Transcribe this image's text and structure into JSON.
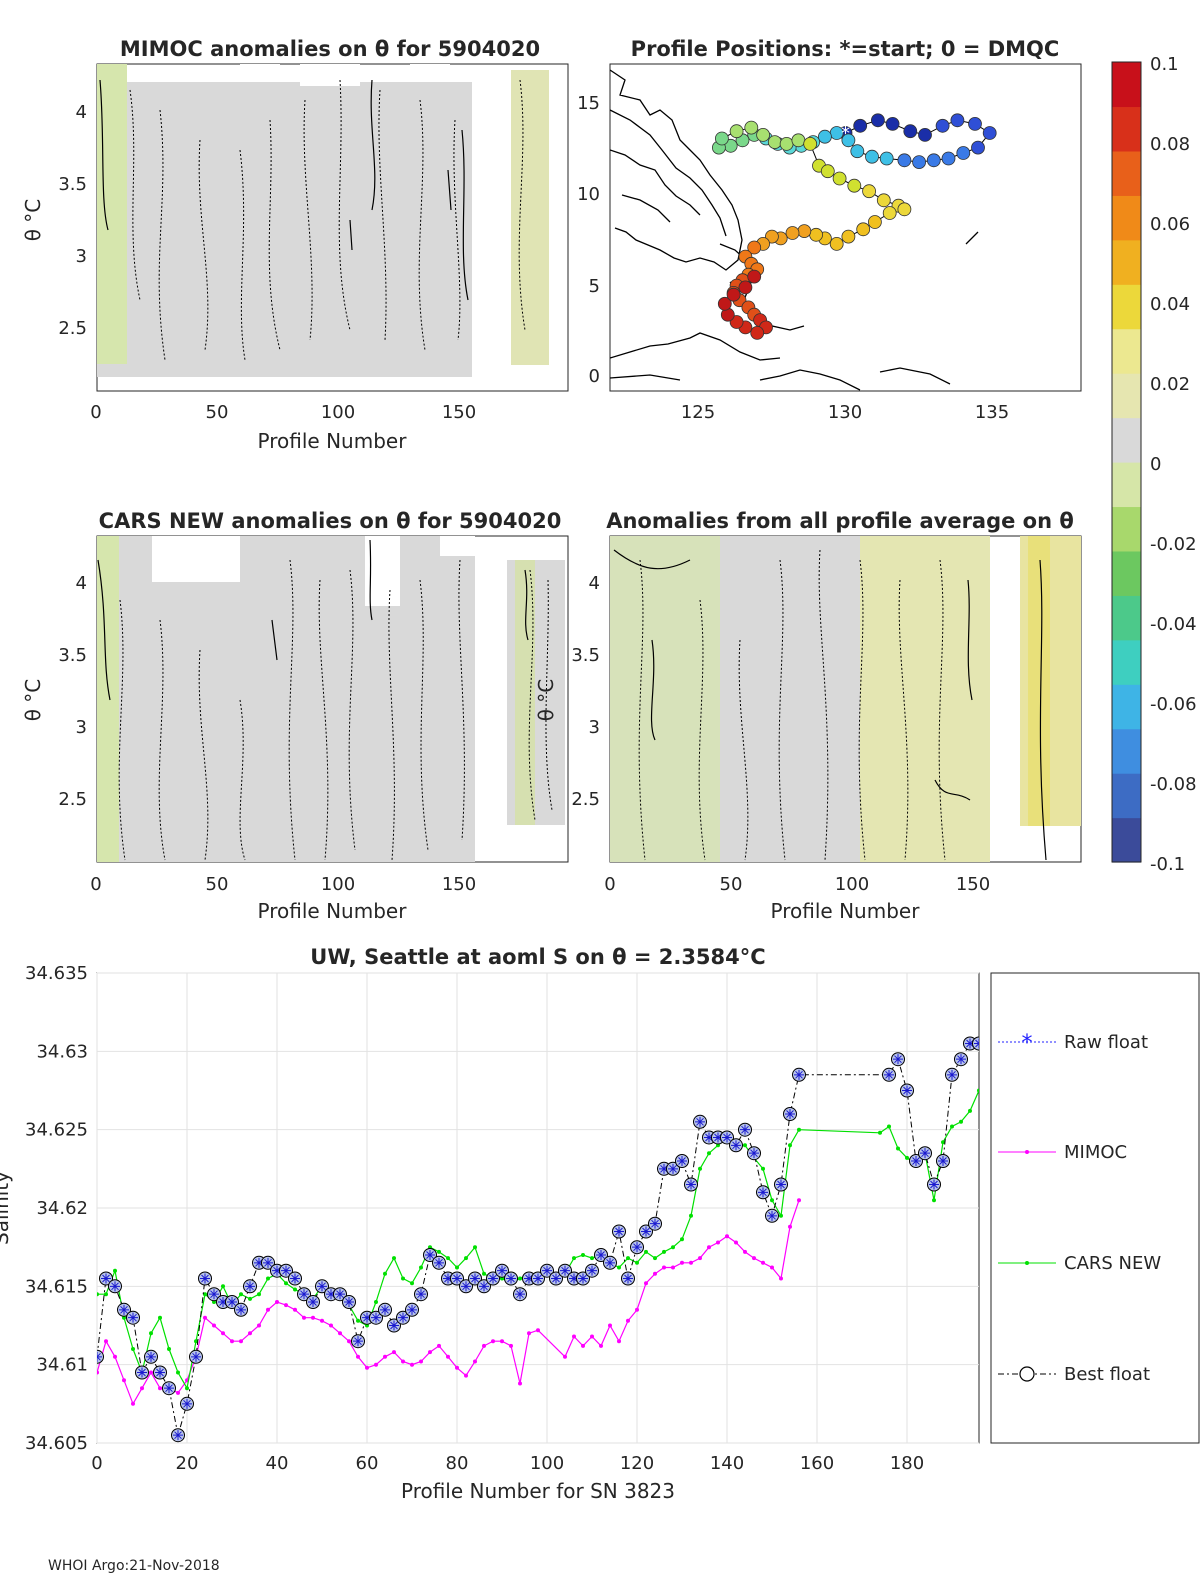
{
  "footer": "WHOI Argo:21-Nov-2018",
  "colormap_colors": [
    "#3b4b9a",
    "#3d6cc4",
    "#3f8ee0",
    "#3eb4e6",
    "#3ecfc0",
    "#4cc98a",
    "#6cc860",
    "#a8d86c",
    "#d6e6a8",
    "#d9d9d9",
    "#e6e6b0",
    "#ece890",
    "#ecd83a",
    "#f0b020",
    "#f08a18",
    "#e8601a",
    "#d8301a",
    "#c8101a"
  ],
  "anomaly_colors": {
    "gray": "#d9d9d9",
    "green": "#d6e6ad",
    "yellow": "#e8e8a8",
    "bright_yellow": "#e8e07a"
  },
  "chart_data": [
    {
      "id": "mimoc",
      "type": "heatmap",
      "title": "MIMOC anomalies on θ  for 5904020",
      "xlabel": "Profile Number",
      "ylabel": "θ °C",
      "xlim": [
        0,
        195
      ],
      "ylim": [
        2.05,
        4.3
      ],
      "xticks": [
        "0",
        "50",
        "100",
        "150"
      ],
      "yticks": [
        "2.5",
        "3",
        "3.5",
        "4"
      ],
      "data_columns": [
        [
          0,
          155
        ],
        [
          172,
          192
        ]
      ]
    },
    {
      "id": "positions",
      "type": "scatter",
      "title": "Profile Positions: *=start; 0 = DMQC",
      "xlim": [
        122,
        138
      ],
      "ylim": [
        -1,
        17
      ],
      "xticks": [
        "125",
        "130",
        "135"
      ],
      "yticks": [
        "0",
        "5",
        "10",
        "15"
      ],
      "track_lon": [
        130.0,
        130.5,
        131.1,
        131.6,
        132.2,
        132.7,
        133.3,
        133.8,
        134.4,
        134.9,
        134.5,
        134.0,
        133.5,
        133.0,
        132.5,
        132.0,
        131.4,
        130.9,
        130.4,
        130.1,
        129.7,
        129.3,
        128.9,
        128.5,
        128.1,
        127.7,
        127.3,
        126.9,
        126.5,
        126.1,
        125.7,
        125.8,
        126.3,
        126.8,
        127.2,
        127.6,
        128.0,
        128.4,
        128.8,
        129.1,
        129.4,
        129.8,
        130.3,
        130.8,
        131.3,
        131.8,
        132.0,
        131.5,
        131.0,
        130.6,
        130.1,
        129.7,
        129.3,
        129.0,
        128.6,
        128.2,
        127.8,
        127.5,
        127.2,
        126.9,
        126.6,
        126.8,
        127.0,
        126.7,
        126.5,
        126.3,
        126.2,
        126.4,
        126.7,
        126.9,
        127.1,
        127.3,
        127.0,
        126.6,
        126.3,
        126.0,
        125.9,
        126.2,
        126.6,
        126.9
      ],
      "track_lat": [
        13.2,
        13.6,
        13.9,
        13.7,
        13.3,
        13.1,
        13.6,
        13.9,
        13.7,
        13.2,
        12.4,
        12.1,
        11.8,
        11.7,
        11.6,
        11.7,
        11.8,
        11.9,
        12.2,
        12.8,
        13.2,
        13.0,
        12.7,
        12.5,
        12.4,
        12.6,
        12.9,
        13.1,
        12.8,
        12.5,
        12.4,
        12.9,
        13.3,
        13.5,
        13.1,
        12.7,
        12.6,
        12.8,
        12.6,
        11.4,
        11.1,
        10.7,
        10.3,
        10.0,
        9.5,
        9.2,
        9.0,
        8.8,
        8.3,
        7.9,
        7.5,
        7.1,
        7.4,
        7.6,
        7.8,
        7.7,
        7.4,
        7.5,
        7.1,
        6.9,
        6.4,
        6.0,
        5.7,
        5.4,
        5.1,
        4.8,
        4.4,
        4.0,
        3.6,
        3.2,
        2.9,
        2.5,
        2.2,
        2.5,
        2.8,
        3.2,
        3.8,
        4.3,
        4.7,
        5.3
      ],
      "start": {
        "lon": 130.0,
        "lat": 13.2
      }
    },
    {
      "id": "cars",
      "type": "heatmap",
      "title": "CARS NEW anomalies on θ for 5904020",
      "xlabel": "Profile Number",
      "ylabel": "θ °C",
      "xlim": [
        0,
        195
      ],
      "ylim": [
        2.05,
        4.3
      ],
      "xticks": [
        "0",
        "50",
        "100",
        "150"
      ],
      "yticks": [
        "2.5",
        "3",
        "3.5",
        "4"
      ],
      "data_columns": [
        [
          0,
          155
        ],
        [
          170,
          195
        ]
      ]
    },
    {
      "id": "allavg",
      "type": "heatmap",
      "title": "Anomalies from all profile average on θ",
      "xlabel": "Profile Number",
      "ylabel": "θ °C",
      "xlim": [
        0,
        195
      ],
      "ylim": [
        2.05,
        4.3
      ],
      "xticks": [
        "0",
        "50",
        "100",
        "150"
      ],
      "yticks": [
        "2.5",
        "3",
        "3.5",
        "4"
      ],
      "data_columns": [
        [
          0,
          158
        ],
        [
          170,
          195
        ]
      ]
    },
    {
      "id": "colorbar",
      "type": "heatmap",
      "range": [
        -0.1,
        0.1
      ],
      "ticks": [
        "0.1",
        "0.08",
        "0.06",
        "0.04",
        "0.02",
        "0",
        "-0.02",
        "-0.04",
        "-0.06",
        "-0.08",
        "-0.1"
      ]
    },
    {
      "id": "salinity",
      "type": "line",
      "title": "UW, Seattle at aoml S on θ = 2.3584°C",
      "xlabel": "Profile Number for SN 3823",
      "ylabel": "Salinity",
      "xlim": [
        0,
        196
      ],
      "ylim": [
        34.605,
        34.635
      ],
      "xticks": [
        "0",
        "20",
        "40",
        "60",
        "80",
        "100",
        "120",
        "140",
        "160",
        "180"
      ],
      "yticks": [
        "34.605",
        "34.61",
        "34.615",
        "34.62",
        "34.625",
        "34.63",
        "34.635"
      ],
      "legend": [
        "Raw float",
        "MIMOC",
        "CARS NEW",
        "Best float"
      ],
      "series": [
        {
          "name": "Best float",
          "color": "#000000",
          "x": [
            0,
            2,
            4,
            6,
            8,
            10,
            12,
            14,
            16,
            18,
            20,
            22,
            24,
            26,
            28,
            30,
            32,
            34,
            36,
            38,
            40,
            42,
            44,
            46,
            48,
            50,
            52,
            54,
            56,
            58,
            60,
            62,
            64,
            66,
            68,
            70,
            72,
            74,
            76,
            78,
            80,
            82,
            84,
            86,
            88,
            90,
            92,
            94,
            96,
            98,
            100,
            102,
            104,
            106,
            108,
            110,
            112,
            114,
            116,
            118,
            120,
            122,
            124,
            126,
            128,
            130,
            132,
            134,
            136,
            138,
            140,
            142,
            144,
            146,
            148,
            150,
            152,
            154,
            156,
            176,
            178,
            180,
            182,
            184,
            186,
            188,
            190,
            192,
            194,
            196
          ],
          "y": [
            34.6105,
            34.6155,
            34.615,
            34.6135,
            34.613,
            34.6095,
            34.6105,
            34.6095,
            34.6085,
            34.6055,
            34.6075,
            34.6105,
            34.6155,
            34.6145,
            34.614,
            34.614,
            34.6135,
            34.615,
            34.6165,
            34.6165,
            34.616,
            34.616,
            34.6155,
            34.6145,
            34.614,
            34.615,
            34.6145,
            34.6145,
            34.614,
            34.6115,
            34.613,
            34.613,
            34.6135,
            34.6125,
            34.613,
            34.6135,
            34.6145,
            34.617,
            34.6165,
            34.6155,
            34.6155,
            34.615,
            34.6155,
            34.615,
            34.6155,
            34.616,
            34.6155,
            34.6145,
            34.6155,
            34.6155,
            34.616,
            34.6155,
            34.616,
            34.6155,
            34.6155,
            34.616,
            34.617,
            34.6165,
            34.6185,
            34.6155,
            34.6175,
            34.6185,
            34.619,
            34.6225,
            34.6225,
            34.623,
            34.6215,
            34.6255,
            34.6245,
            34.6245,
            34.6245,
            34.624,
            34.625,
            34.6235,
            34.621,
            34.6195,
            34.6215,
            34.626,
            34.6285,
            34.6285,
            34.6295,
            34.6275,
            34.623,
            34.6235,
            34.6215,
            34.623,
            34.6285,
            34.6295,
            34.6305,
            34.6305
          ]
        },
        {
          "name": "MIMOC",
          "color": "#ff00ff",
          "x": [
            0,
            2,
            4,
            6,
            8,
            10,
            12,
            14,
            16,
            18,
            20,
            22,
            24,
            26,
            28,
            30,
            32,
            34,
            36,
            38,
            40,
            42,
            44,
            46,
            48,
            50,
            52,
            54,
            56,
            58,
            60,
            62,
            64,
            66,
            68,
            70,
            72,
            74,
            76,
            78,
            80,
            82,
            84,
            86,
            88,
            90,
            92,
            94,
            96,
            98,
            104,
            106,
            108,
            110,
            112,
            114,
            116,
            118,
            120,
            122,
            124,
            126,
            128,
            130,
            132,
            134,
            136,
            138,
            140,
            142,
            144,
            146,
            148,
            150,
            152,
            154,
            156
          ],
          "y": [
            34.6095,
            34.6115,
            34.6105,
            34.609,
            34.6075,
            34.6085,
            34.6095,
            34.6085,
            34.6085,
            34.6082,
            34.609,
            34.6105,
            34.613,
            34.6125,
            34.612,
            34.6115,
            34.6115,
            34.612,
            34.6125,
            34.6135,
            34.614,
            34.6138,
            34.6135,
            34.613,
            34.613,
            34.6128,
            34.6125,
            34.612,
            34.6115,
            34.6105,
            34.6098,
            34.61,
            34.6105,
            34.6108,
            34.6102,
            34.61,
            34.6102,
            34.6108,
            34.6112,
            34.6105,
            34.6098,
            34.6093,
            34.6102,
            34.6112,
            34.6115,
            34.6115,
            34.6112,
            34.6088,
            34.612,
            34.6122,
            34.6105,
            34.6118,
            34.6112,
            34.6118,
            34.6112,
            34.6125,
            34.6115,
            34.6128,
            34.6135,
            34.6152,
            34.6158,
            34.6162,
            34.6162,
            34.6165,
            34.6165,
            34.6168,
            34.6175,
            34.6178,
            34.6182,
            34.6178,
            34.6172,
            34.6168,
            34.6165,
            34.6162,
            34.6155,
            34.6188,
            34.6205
          ]
        },
        {
          "name": "CARS NEW",
          "color": "#00e000",
          "x": [
            0,
            2,
            4,
            6,
            8,
            10,
            12,
            14,
            16,
            18,
            20,
            22,
            24,
            26,
            28,
            30,
            32,
            34,
            36,
            38,
            40,
            42,
            44,
            46,
            48,
            50,
            52,
            54,
            56,
            58,
            60,
            62,
            64,
            66,
            68,
            70,
            72,
            74,
            76,
            78,
            80,
            82,
            84,
            86,
            88,
            90,
            92,
            94,
            96,
            98,
            100,
            102,
            104,
            106,
            108,
            110,
            112,
            114,
            116,
            118,
            120,
            122,
            124,
            126,
            128,
            130,
            132,
            134,
            136,
            138,
            140,
            142,
            144,
            146,
            148,
            150,
            152,
            154,
            156,
            174,
            176,
            178,
            180,
            182,
            184,
            186,
            188,
            190,
            192,
            194,
            196
          ],
          "y": [
            34.6145,
            34.6145,
            34.616,
            34.613,
            34.611,
            34.6095,
            34.612,
            34.613,
            34.611,
            34.6095,
            34.6085,
            34.6115,
            34.6145,
            34.614,
            34.615,
            34.6138,
            34.6145,
            34.6142,
            34.6145,
            34.6155,
            34.6158,
            34.6152,
            34.6148,
            34.6145,
            34.6142,
            34.615,
            34.6145,
            34.6145,
            34.6138,
            34.6128,
            34.6125,
            34.614,
            34.6158,
            34.6168,
            34.6155,
            34.6152,
            34.6162,
            34.6175,
            34.6172,
            34.6168,
            34.6162,
            34.6168,
            34.6175,
            34.6158,
            34.6155,
            34.6155,
            34.6152,
            34.6155,
            34.6158,
            34.6158,
            34.6158,
            34.6152,
            34.6158,
            34.6168,
            34.617,
            34.6168,
            34.617,
            34.6165,
            34.6162,
            34.6168,
            34.6165,
            34.6172,
            34.6168,
            34.6172,
            34.6175,
            34.618,
            34.6195,
            34.6225,
            34.6235,
            34.624,
            34.6245,
            34.624,
            34.624,
            34.6232,
            34.6225,
            34.6205,
            34.6195,
            34.624,
            34.625,
            34.6248,
            34.6252,
            34.6238,
            34.6232,
            34.6228,
            34.6235,
            34.6205,
            34.6242,
            34.6252,
            34.6255,
            34.6262,
            34.6275
          ]
        }
      ]
    }
  ]
}
